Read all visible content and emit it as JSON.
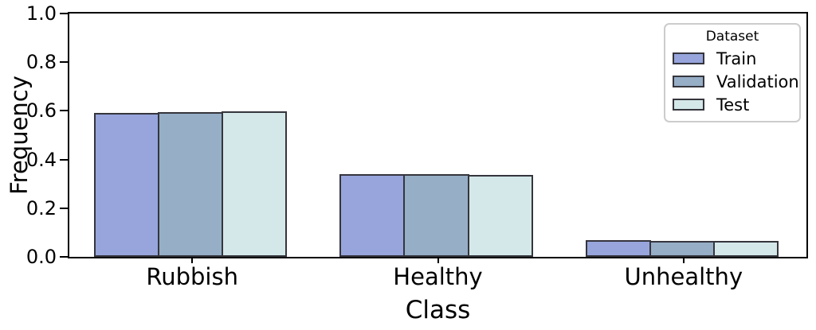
{
  "chart_data": {
    "type": "bar",
    "title": "",
    "xlabel": "Class",
    "ylabel": "Frequency",
    "categories": [
      "Rubbish",
      "Healthy",
      "Unhealthy"
    ],
    "series": [
      {
        "name": "Train",
        "color": "#97a5dc",
        "values": [
          0.59,
          0.341,
          0.069
        ]
      },
      {
        "name": "Validation",
        "color": "#96aec6",
        "values": [
          0.595,
          0.34,
          0.065
        ]
      },
      {
        "name": "Test",
        "color": "#d4e8e9",
        "values": [
          0.598,
          0.336,
          0.066
        ]
      }
    ],
    "ylim": [
      0.0,
      1.0
    ],
    "yticks": [
      "0.0",
      "0.2",
      "0.4",
      "0.6",
      "0.8",
      "1.0"
    ],
    "legend": {
      "title": "Dataset",
      "position": "upper right"
    },
    "grid": false,
    "colors": {
      "bar_edge": "#35353d",
      "spine": "#000000",
      "legend_border": "#cccccc",
      "text": "#000000"
    },
    "layout": {
      "group_width_fraction": 0.8
    }
  }
}
